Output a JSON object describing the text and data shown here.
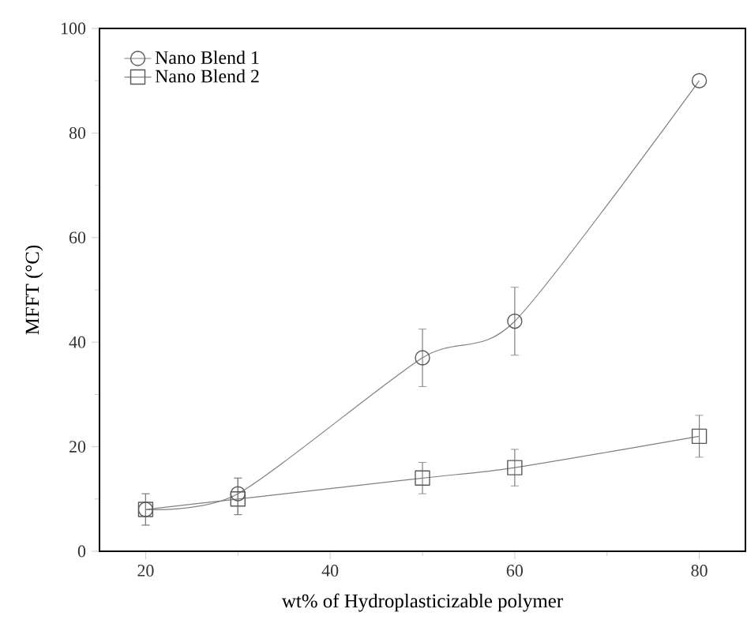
{
  "chart_data": {
    "type": "line",
    "xlabel": "wt% of Hydroplasticizable polymer",
    "ylabel": "MFFT (°C)",
    "x": [
      20,
      30,
      50,
      60,
      80
    ],
    "series": [
      {
        "name": "Nano Blend 1",
        "color": "#7f7f7f",
        "marker": "circle",
        "values": [
          8,
          11,
          37,
          44,
          90
        ],
        "errors": [
          3,
          [
            7,
            14
          ],
          5.5,
          6.5,
          null
        ]
      },
      {
        "name": "Nano Blend 2",
        "color": "#7f7f7f",
        "marker": "square",
        "values": [
          8,
          10,
          14,
          16,
          22
        ],
        "errors": [
          3,
          [
            7,
            14
          ],
          3,
          3.5,
          4
        ]
      }
    ],
    "xlim": [
      15,
      85
    ],
    "ylim": [
      0,
      100
    ],
    "xticks": [
      20,
      40,
      60,
      80
    ],
    "yticks": [
      0,
      20,
      40,
      60,
      80,
      100
    ],
    "grid": false,
    "legend": "top left",
    "line_style": "solid"
  }
}
